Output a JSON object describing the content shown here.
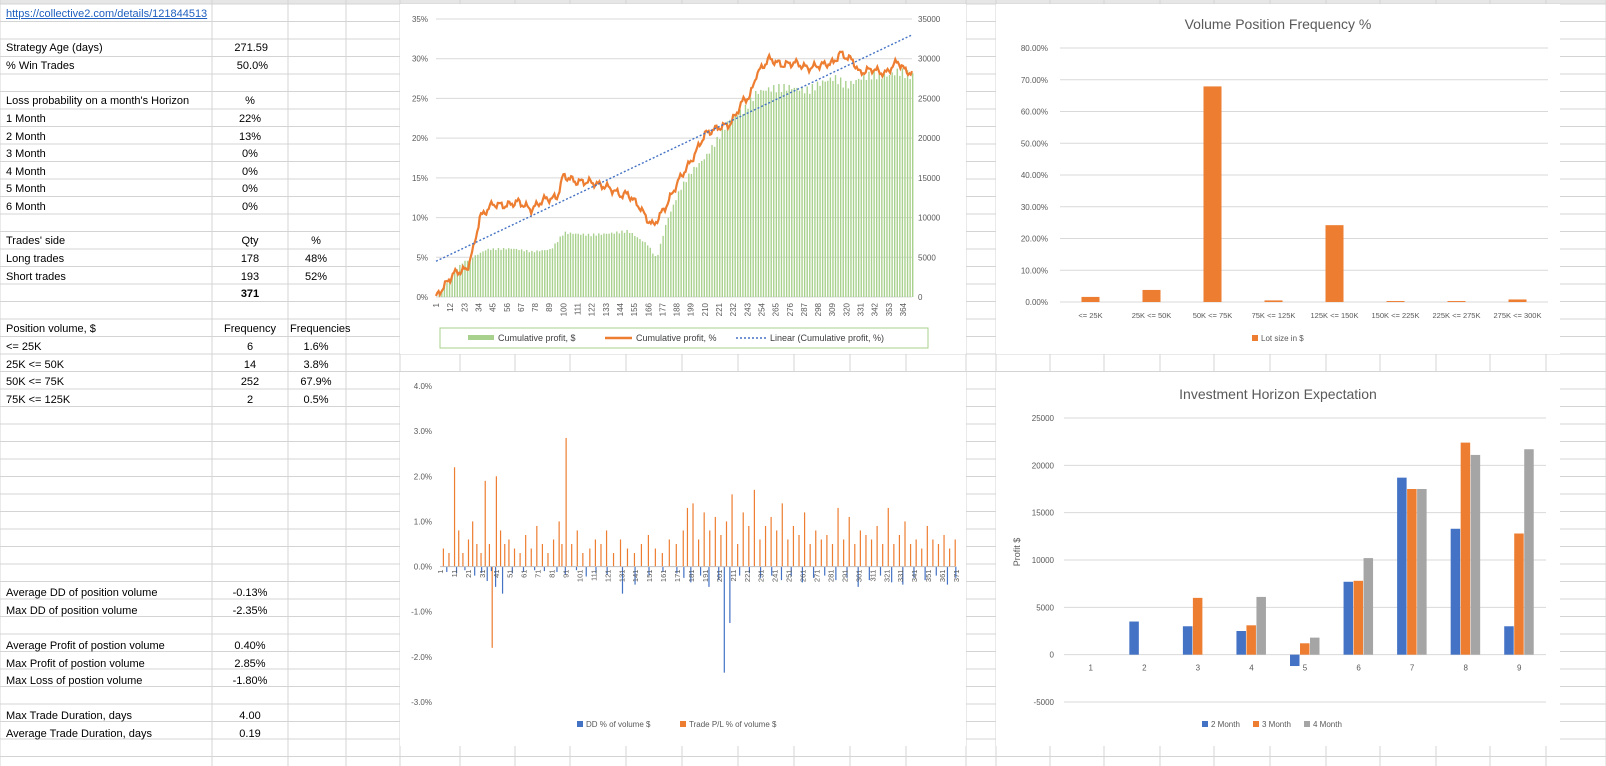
{
  "link": "https://collective2.com/details/121844513",
  "stats": {
    "strategy_age": {
      "label": "Strategy Age (days)",
      "value": "271.59"
    },
    "win_trades": {
      "label": "% Win Trades",
      "value": "50.0%"
    }
  },
  "loss_prob": {
    "title": "Loss probability on a month's Horizon",
    "unit": "%",
    "rows": [
      {
        "label": "1 Month",
        "value": "22%"
      },
      {
        "label": "2 Month",
        "value": "13%"
      },
      {
        "label": "3 Month",
        "value": "0%"
      },
      {
        "label": "4 Month",
        "value": "0%"
      },
      {
        "label": "5 Month",
        "value": "0%"
      },
      {
        "label": "6 Month",
        "value": "0%"
      }
    ]
  },
  "trades_side": {
    "title": "Trades' side",
    "qty_header": "Qty",
    "pct_header": "%",
    "rows": [
      {
        "label": "Long trades",
        "qty": "178",
        "pct": "48%"
      },
      {
        "label": "Short trades",
        "qty": "193",
        "pct": "52%"
      }
    ],
    "total": "371"
  },
  "position_volume": {
    "title": "Position volume, $",
    "freq_header": "Frequency",
    "freqs_header": "Frequencies",
    "rows": [
      {
        "label": "<= 25K",
        "freq": "6",
        "pct": "1.6%"
      },
      {
        "label": "25K <= 50K",
        "freq": "14",
        "pct": "3.8%"
      },
      {
        "label": "50K <= 75K",
        "freq": "252",
        "pct": "67.9%"
      },
      {
        "label": "75K <= 125K",
        "freq": "2",
        "pct": "0.5%"
      }
    ]
  },
  "dd_stats": [
    {
      "label": "Average DD of position volume",
      "value": "-0.13%"
    },
    {
      "label": "Max DD of position volume",
      "value": "-2.35%"
    }
  ],
  "profit_stats": [
    {
      "label": "Average Profit of postion volume",
      "value": "0.40%"
    },
    {
      "label": "Max Profit of postion volume",
      "value": "2.85%"
    },
    {
      "label": "Max Loss of postion volume",
      "value": "-1.80%"
    }
  ],
  "duration_stats": [
    {
      "label": "Max Trade Duration, days",
      "value": "4.00"
    },
    {
      "label": "Average Trade Duration, days",
      "value": "0.19"
    }
  ],
  "chart_data": [
    {
      "type": "combo",
      "title": "",
      "x_ticks": [
        "1",
        "12",
        "23",
        "34",
        "45",
        "56",
        "67",
        "78",
        "89",
        "100",
        "111",
        "122",
        "133",
        "144",
        "155",
        "166",
        "177",
        "188",
        "199",
        "210",
        "221",
        "232",
        "243",
        "254",
        "265",
        "276",
        "287",
        "298",
        "309",
        "320",
        "331",
        "342",
        "353",
        "364"
      ],
      "y_left_ticks": [
        "0%",
        "5%",
        "10%",
        "15%",
        "20%",
        "25%",
        "30%",
        "35%"
      ],
      "y_right_ticks": [
        "0",
        "5000",
        "10000",
        "15000",
        "20000",
        "25000",
        "30000",
        "35000"
      ],
      "ylim_left": [
        0,
        35
      ],
      "ylim_right": [
        0,
        35000
      ],
      "x_range": [
        1,
        371
      ],
      "series": [
        {
          "name": "Cumulative profit, $",
          "kind": "bar",
          "axis": "right",
          "color": "#a9d18e",
          "x": [
            1,
            20,
            40,
            60,
            75,
            90,
            100,
            120,
            135,
            150,
            165,
            172,
            180,
            190,
            200,
            210,
            220,
            230,
            240,
            250,
            260,
            275,
            290,
            300,
            310,
            320,
            330,
            340,
            350,
            360,
            371
          ],
          "y": [
            0,
            4200,
            6000,
            6100,
            5700,
            6000,
            8100,
            7800,
            8000,
            8300,
            6600,
            4800,
            9600,
            13500,
            16000,
            17600,
            20000,
            22700,
            23500,
            25800,
            26200,
            26400,
            26000,
            27000,
            27600,
            26600,
            27500,
            28000,
            27800,
            28400,
            27800
          ]
        },
        {
          "name": "Cumulative profit, %",
          "kind": "line",
          "axis": "left",
          "color": "#ed7d31",
          "x": [
            1,
            15,
            25,
            30,
            35,
            45,
            55,
            65,
            75,
            85,
            95,
            100,
            110,
            120,
            135,
            145,
            150,
            160,
            165,
            170,
            180,
            190,
            200,
            210,
            220,
            230,
            240,
            245,
            250,
            260,
            270,
            280,
            290,
            300,
            310,
            315,
            320,
            325,
            330,
            340,
            350,
            360,
            365,
            371
          ],
          "y": [
            0,
            3,
            3.5,
            6,
            10,
            11.7,
            11.5,
            12,
            11,
            12.3,
            12.5,
            15.3,
            14.5,
            14.5,
            13.8,
            12.8,
            13,
            11.2,
            9.8,
            9,
            11.5,
            14.8,
            17.3,
            20.5,
            21.3,
            21.8,
            24.8,
            25.2,
            28,
            30,
            29.2,
            29.5,
            28.8,
            29.2,
            29.5,
            30.7,
            30.2,
            29.8,
            28.2,
            28.7,
            28.1,
            29.7,
            28.6,
            28.1
          ]
        },
        {
          "name": "Linear (Cumulative profit, %)",
          "kind": "trend",
          "axis": "left",
          "color": "#4472c4",
          "x": [
            1,
            371
          ],
          "y": [
            4.5,
            33
          ]
        }
      ]
    },
    {
      "type": "bar",
      "title": "Volume Position Frequency %",
      "categories": [
        "<= 25K",
        "25K <= 50K",
        "50K <= 75K",
        "75K <= 125K",
        "125K <= 150K",
        "150K <= 225K",
        "225K <= 275K",
        "275K <= 300K"
      ],
      "values": [
        1.6,
        3.8,
        67.9,
        0.5,
        24.2,
        0.3,
        0.3,
        0.8
      ],
      "ylim": [
        0,
        80
      ],
      "y_ticks": [
        "0.00%",
        "10.00%",
        "20.00%",
        "30.00%",
        "40.00%",
        "50.00%",
        "60.00%",
        "70.00%",
        "80.00%"
      ],
      "legend": [
        "Lot size in $"
      ],
      "color": "#ed7d31"
    },
    {
      "type": "bar",
      "title": "",
      "x_ticks": [
        "1",
        "11",
        "21",
        "31",
        "41",
        "51",
        "61",
        "71",
        "81",
        "91",
        "101",
        "111",
        "121",
        "131",
        "141",
        "151",
        "161",
        "171",
        "181",
        "191",
        "201",
        "211",
        "221",
        "231",
        "241",
        "251",
        "261",
        "271",
        "281",
        "291",
        "301",
        "311",
        "321",
        "331",
        "341",
        "351",
        "361",
        "371"
      ],
      "y_ticks": [
        "-3.0%",
        "-2.0%",
        "-1.0%",
        "0.0%",
        "1.0%",
        "2.0%",
        "3.0%",
        "4.0%"
      ],
      "ylim": [
        -3,
        4
      ],
      "x_range": [
        1,
        371
      ],
      "series": [
        {
          "name": "DD % of volume $",
          "color": "#4472c4",
          "x": [
            5,
            12,
            18,
            25,
            30,
            34,
            37,
            40,
            45,
            52,
            60,
            68,
            75,
            84,
            90,
            98,
            105,
            112,
            120,
            131,
            140,
            150,
            160,
            170,
            175,
            180,
            187,
            193,
            200,
            204,
            208,
            215,
            222,
            230,
            238,
            245,
            252,
            260,
            268,
            276,
            284,
            292,
            300,
            308,
            316,
            324,
            332,
            340,
            348,
            356,
            364,
            370
          ],
          "values": [
            -0.12,
            -0.15,
            -0.08,
            -0.2,
            -0.14,
            -0.32,
            -0.1,
            -0.45,
            -0.6,
            -0.15,
            -0.12,
            -0.08,
            -0.1,
            -0.12,
            -0.18,
            -0.08,
            -0.22,
            -0.15,
            -0.18,
            -0.6,
            -0.4,
            -0.2,
            -0.12,
            -0.15,
            -0.25,
            -0.35,
            -0.2,
            -0.45,
            -0.3,
            -2.35,
            -1.25,
            -0.2,
            -0.15,
            -0.25,
            -0.2,
            -0.3,
            -0.22,
            -0.35,
            -0.25,
            -0.2,
            -0.3,
            -0.25,
            -0.45,
            -0.3,
            -0.2,
            -0.35,
            -0.4,
            -0.25,
            -0.3,
            -0.2,
            -0.4,
            -0.25
          ]
        },
        {
          "name": "Trade P/L % of volume $",
          "color": "#ed7d31",
          "x": [
            3,
            7,
            11,
            14,
            17,
            21,
            24,
            27,
            30,
            33,
            36,
            38,
            41,
            44,
            47,
            50,
            54,
            58,
            62,
            66,
            70,
            74,
            78,
            82,
            86,
            88,
            91,
            95,
            99,
            103,
            108,
            112,
            116,
            120,
            125,
            130,
            135,
            140,
            145,
            150,
            155,
            160,
            165,
            170,
            175,
            178,
            182,
            186,
            190,
            194,
            198,
            202,
            206,
            210,
            214,
            218,
            222,
            226,
            230,
            234,
            238,
            242,
            246,
            250,
            254,
            258,
            262,
            266,
            270,
            274,
            278,
            282,
            286,
            290,
            294,
            298,
            302,
            306,
            310,
            314,
            318,
            322,
            326,
            330,
            334,
            338,
            342,
            346,
            350,
            354,
            358,
            362,
            366,
            370
          ],
          "values": [
            0.4,
            0.3,
            2.2,
            0.8,
            0.3,
            0.6,
            1.0,
            0.5,
            0.3,
            1.9,
            0.5,
            -1.8,
            2.0,
            0.8,
            0.5,
            0.6,
            0.4,
            0.3,
            0.7,
            0.4,
            0.9,
            0.5,
            0.3,
            0.6,
            1.0,
            0.5,
            2.85,
            0.5,
            0.8,
            0.3,
            0.4,
            0.6,
            0.5,
            0.8,
            0.3,
            0.6,
            0.4,
            0.3,
            0.5,
            0.7,
            0.4,
            0.3,
            0.6,
            0.5,
            0.8,
            1.3,
            1.4,
            0.6,
            1.2,
            0.8,
            1.1,
            0.7,
            1.0,
            1.6,
            0.5,
            1.2,
            0.9,
            1.7,
            0.6,
            0.9,
            1.1,
            0.8,
            1.4,
            0.6,
            0.9,
            0.7,
            1.2,
            0.5,
            0.8,
            0.6,
            0.7,
            0.5,
            1.3,
            0.6,
            1.1,
            0.5,
            0.8,
            0.7,
            0.6,
            0.9,
            0.5,
            1.3,
            0.5,
            0.7,
            1.0,
            0.5,
            0.6,
            0.4,
            0.9,
            0.6,
            0.5,
            0.7,
            0.4,
            0.6
          ]
        }
      ],
      "legend": [
        "DD % of volume $",
        "Trade P/L % of volume $"
      ]
    },
    {
      "type": "bar",
      "title": "Investment Horizon Expectation",
      "categories": [
        "1",
        "2",
        "3",
        "4",
        "5",
        "6",
        "7",
        "8",
        "9"
      ],
      "ylabel": "Profit $",
      "ylim": [
        -5000,
        25000
      ],
      "y_ticks": [
        "-5000",
        "0",
        "5000",
        "10000",
        "15000",
        "20000",
        "25000"
      ],
      "series": [
        {
          "name": "2 Month",
          "color": "#4472c4",
          "values": [
            0,
            3500,
            3000,
            2500,
            -1200,
            7700,
            18700,
            13300,
            3000
          ]
        },
        {
          "name": "3 Month",
          "color": "#ed7d31",
          "values": [
            0,
            0,
            6000,
            3100,
            1200,
            7800,
            17500,
            22400,
            12800
          ]
        },
        {
          "name": "4 Month",
          "color": "#a5a5a5",
          "values": [
            0,
            0,
            0,
            6100,
            1800,
            10200,
            17500,
            21100,
            21700
          ]
        }
      ]
    }
  ]
}
